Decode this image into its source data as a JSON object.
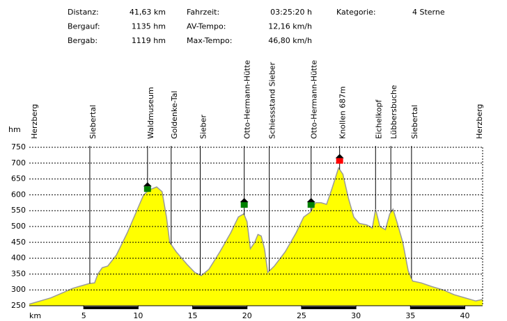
{
  "chart_data": {
    "type": "area",
    "summary": [
      [
        {
          "label": "Distanz:",
          "value": "41,63 km"
        },
        {
          "label": "Bergauf:",
          "value": "1135 hm"
        },
        {
          "label": "Bergab:",
          "value": "1119 hm"
        }
      ],
      [
        {
          "label": "Fahrzeit:",
          "value": "03:25:20 h"
        },
        {
          "label": "AV-Tempo:",
          "value": "12,16 km/h"
        },
        {
          "label": "Max-Tempo:",
          "value": "46,80 km/h"
        }
      ],
      [
        {
          "label": "Kategorie:",
          "value": "4 Sterne"
        }
      ]
    ],
    "ylabel": "hm",
    "xlabel": "km",
    "x": [
      0,
      1,
      2,
      3,
      4,
      4.5,
      5,
      5.5,
      6,
      6.3,
      6.7,
      7.2,
      8,
      9,
      10,
      10.5,
      11,
      11.7,
      12.2,
      12.6,
      12.9,
      13.5,
      14.5,
      15.2,
      15.8,
      16.5,
      17.5,
      18.5,
      19.2,
      19.7,
      20,
      20.3,
      20.7,
      21,
      21.3,
      21.6,
      21.9,
      22.5,
      23.5,
      24.5,
      25.2,
      25.8,
      26.3,
      26.8,
      27.3,
      27.8,
      28.4,
      28.8,
      29.3,
      29.8,
      30.3,
      31,
      31.5,
      31.8,
      32.2,
      32.7,
      33.1,
      33.4,
      33.8,
      34.3,
      34.8,
      35.2,
      36,
      37,
      38,
      39,
      40,
      41,
      41.63
    ],
    "values": [
      255,
      265,
      275,
      290,
      305,
      310,
      315,
      320,
      322,
      350,
      370,
      375,
      410,
      480,
      560,
      600,
      615,
      625,
      610,
      530,
      450,
      420,
      380,
      355,
      345,
      365,
      420,
      480,
      530,
      540,
      515,
      430,
      450,
      475,
      470,
      430,
      355,
      375,
      420,
      480,
      530,
      545,
      575,
      575,
      570,
      620,
      685,
      665,
      590,
      530,
      510,
      505,
      495,
      555,
      500,
      490,
      540,
      555,
      510,
      450,
      360,
      328,
      322,
      310,
      300,
      285,
      275,
      265,
      270
    ],
    "color": "#ffff00",
    "waypoints": [
      {
        "name": "Herzberg",
        "km": 0
      },
      {
        "name": "Siebertal",
        "km": 5.56
      },
      {
        "name": "Waldmuseum",
        "km": 10.86
      },
      {
        "name": "Goldenke-Tal",
        "km": 13.03
      },
      {
        "name": "Sieber",
        "km": 15.7
      },
      {
        "name": "Otto-Hermann-Hütte",
        "km": 19.74
      },
      {
        "name": "Schiessstand Sieber",
        "km": 22.04
      },
      {
        "name": "Otto-Hermann-Hütte",
        "km": 25.88
      },
      {
        "name": "Knollen 687m",
        "km": 28.5
      },
      {
        "name": "Eichelkopf",
        "km": 31.8
      },
      {
        "name": "Lübbersbuche",
        "km": 33.2
      },
      {
        "name": "Siebertal",
        "km": 35.1
      },
      {
        "name": "Herzberg",
        "km": 41.63
      }
    ],
    "icons": [
      {
        "km": 10.86,
        "elevation": 618,
        "color": "#008000"
      },
      {
        "km": 19.74,
        "elevation": 568,
        "color": "#008000"
      },
      {
        "km": 25.88,
        "elevation": 568,
        "color": "#008000"
      },
      {
        "km": 28.5,
        "elevation": 707,
        "color": "#ff0000"
      }
    ],
    "xlim": [
      0,
      41.63
    ],
    "ylim": [
      250,
      750
    ],
    "xticks": [
      5,
      10,
      15,
      20,
      25,
      30,
      35,
      40
    ],
    "yticks": [
      250,
      300,
      350,
      400,
      450,
      500,
      550,
      600,
      650,
      700,
      750
    ],
    "grid": true
  }
}
